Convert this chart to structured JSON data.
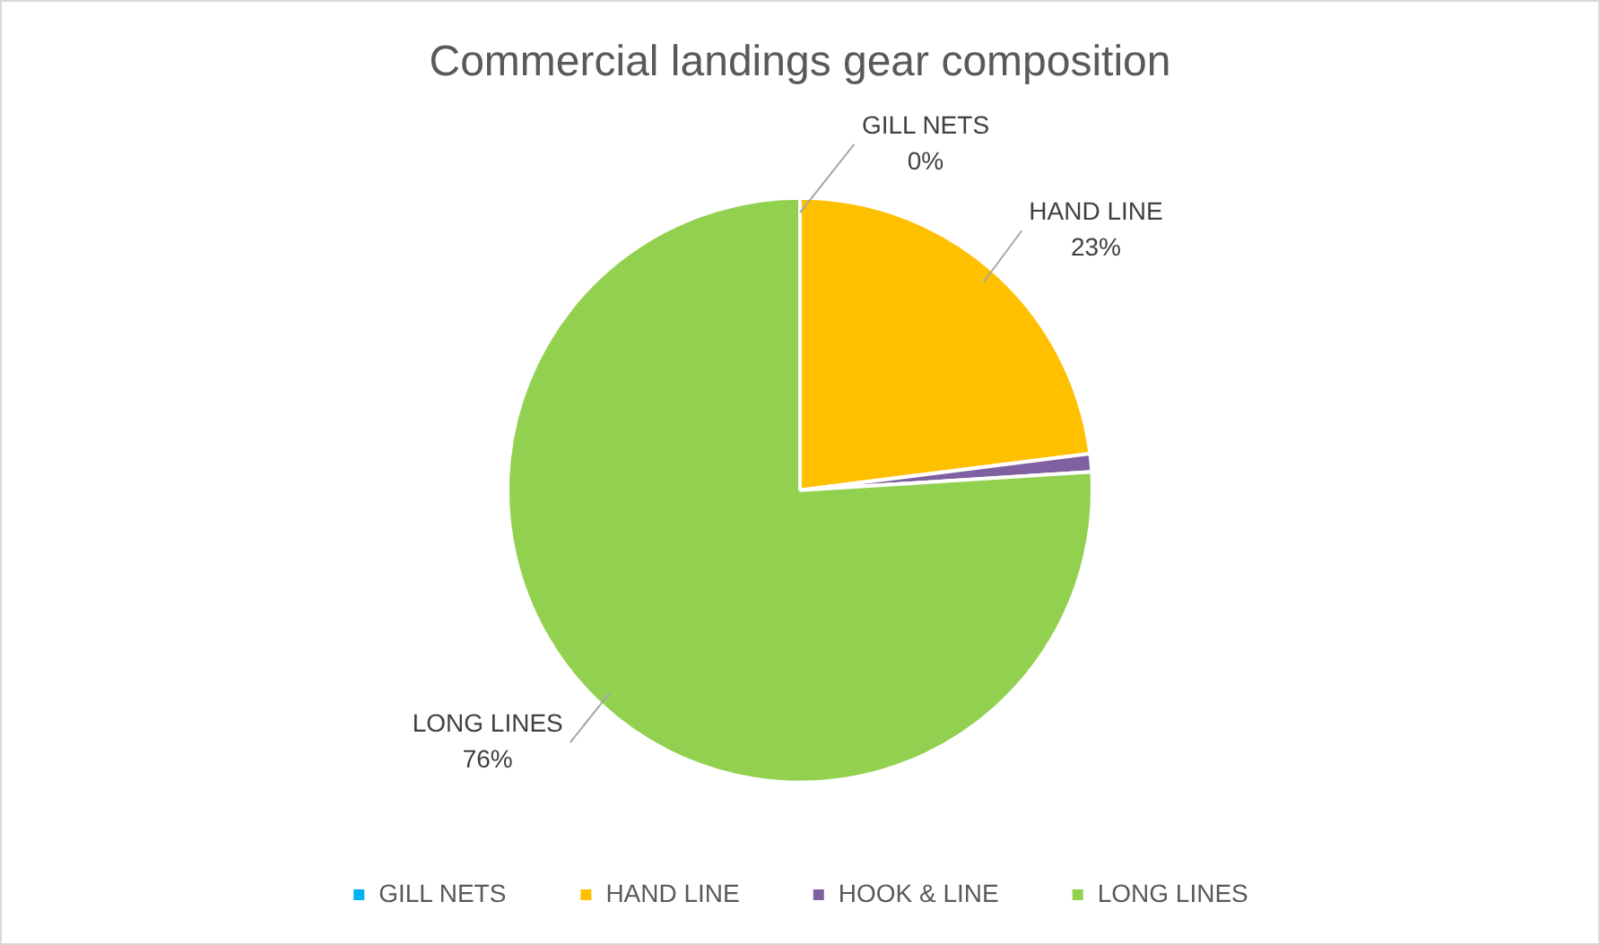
{
  "chart_data": {
    "type": "pie",
    "title": "Commercial landings gear composition",
    "categories": [
      "GILL NETS",
      "HAND LINE",
      "HOOK & LINE",
      "LONG LINES"
    ],
    "values": [
      0,
      23,
      1,
      76
    ],
    "colors": [
      "#00b0f0",
      "#ffc000",
      "#7f60a0",
      "#92d050"
    ],
    "value_labels": [
      "0%",
      "23%",
      null,
      "76%"
    ],
    "legend": "bottom"
  }
}
